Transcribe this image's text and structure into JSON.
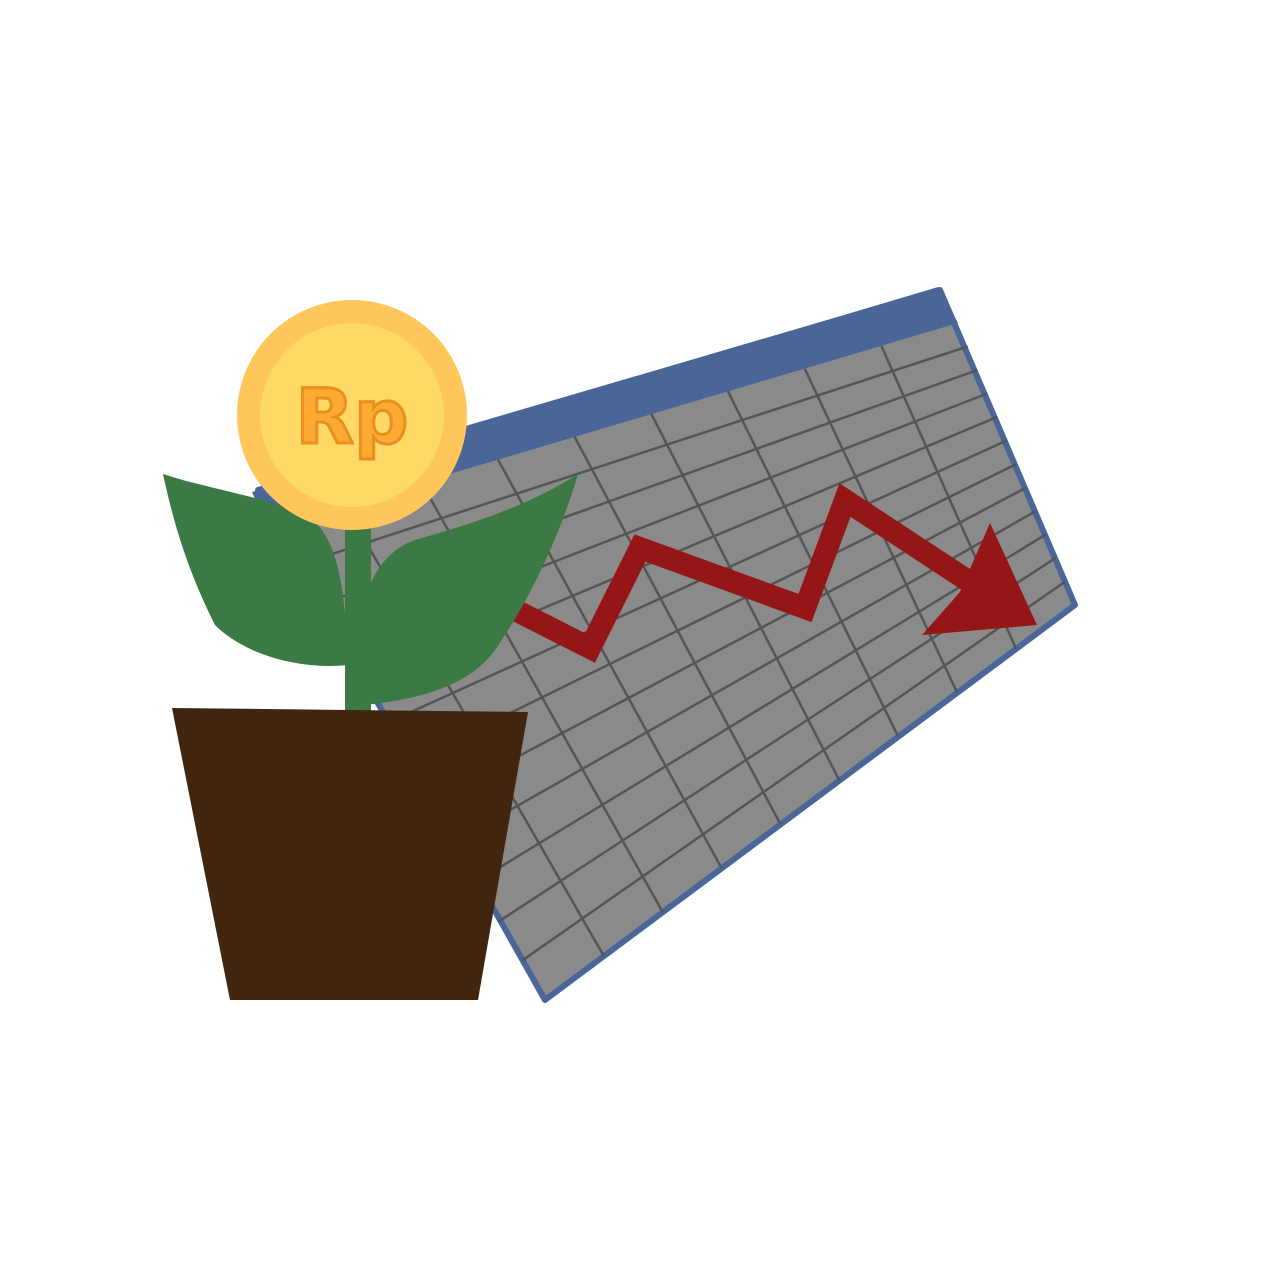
{
  "illustration": {
    "coin_symbol": "Rp",
    "icons": {
      "spreadsheet": "spreadsheet-icon",
      "trend_arrow": "down-trend-arrow-icon",
      "coin": "coin-icon",
      "leaves": "plant-leaves-icon",
      "pot": "flower-pot-icon"
    },
    "colors": {
      "sheet_header": "#4a6699",
      "sheet_body": "#8a8a8a",
      "grid_lines": "#555555",
      "trend_arrow": "#951616",
      "coin_outer": "#ffc65c",
      "coin_inner": "#ffd966",
      "coin_text_fill": "#ffaa33",
      "coin_text_stroke": "#e89020",
      "leaves": "#3b7a44",
      "pot": "#42250f",
      "background": "#ffffff"
    }
  }
}
